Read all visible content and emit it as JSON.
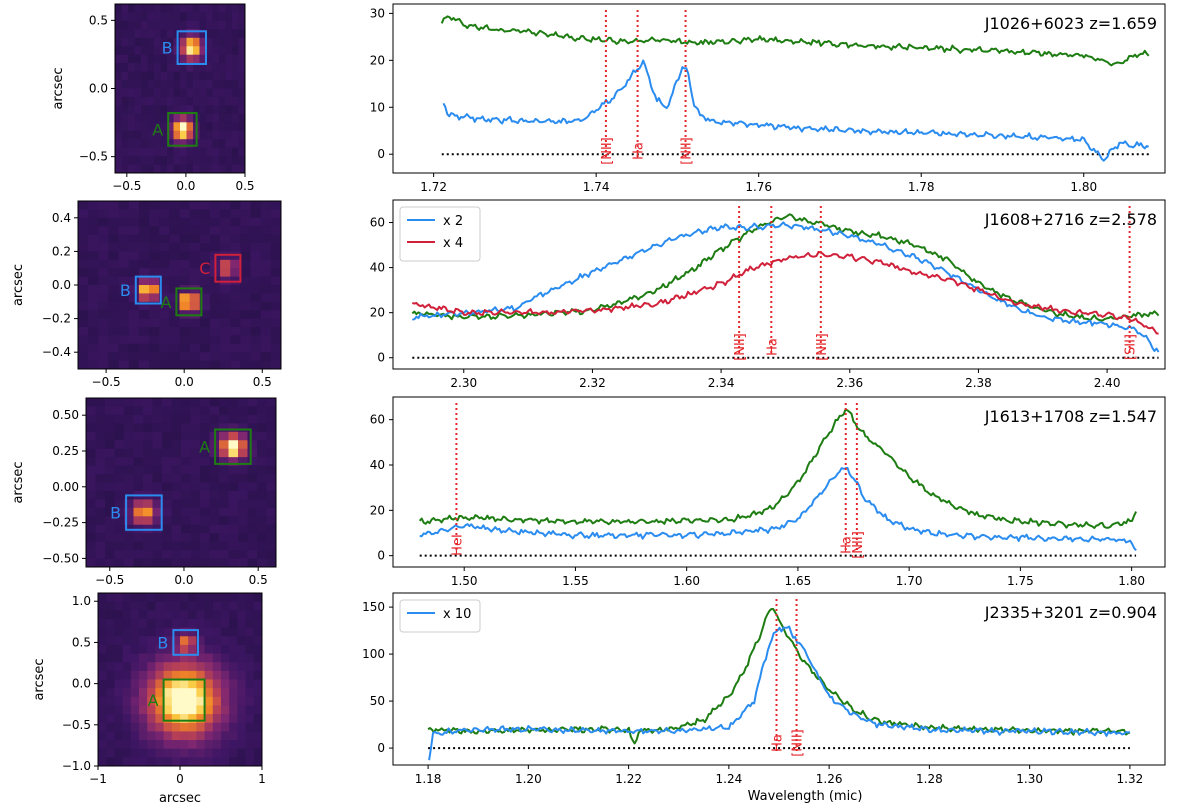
{
  "figure": {
    "x_label_bottom": "Wavelength (mic)"
  },
  "colors": {
    "green": "#1e7d12",
    "blue": "#2b8cf0",
    "red": "#d0203a",
    "marker": "#e5262b",
    "zero": "#000000"
  },
  "panels": [
    {
      "id": "j1026",
      "image": {
        "ylabel": "arcsec",
        "xlabel": "",
        "xlim": [
          -0.6,
          0.5
        ],
        "ylim": [
          -0.62,
          0.62
        ],
        "xticks": [
          -0.5,
          0.0,
          0.5
        ],
        "xtick_labels": [
          "−0.5",
          "0.0",
          "0.5"
        ],
        "yticks": [
          0.5,
          0.0,
          -0.5
        ],
        "ytick_labels": [
          "0.5",
          "0.0",
          "−0.5"
        ],
        "sources": [
          {
            "label": "B",
            "x": 0.05,
            "y": 0.3,
            "half": 0.12,
            "color": "#2b8cf0",
            "peak": 0.9
          },
          {
            "label": "A",
            "x": -0.03,
            "y": -0.3,
            "half": 0.12,
            "color": "#1e7d12",
            "peak": 1.0
          }
        ]
      },
      "spectrum": {
        "label": "J1026+6023",
        "z_label": "z=1.659",
        "xlim": [
          1.715,
          1.81
        ],
        "ylim": [
          -4,
          32
        ],
        "xticks": [
          1.72,
          1.74,
          1.76,
          1.78,
          1.8
        ],
        "xtick_labels": [
          "1.72",
          "1.74",
          "1.76",
          "1.78",
          "1.80"
        ],
        "yticks": [
          0,
          10,
          20,
          30
        ],
        "ytick_labels": [
          "0",
          "10",
          "20",
          "30"
        ],
        "legend": [],
        "lines": [
          {
            "name": "[NII]",
            "x": 1.7412
          },
          {
            "name": "Ha",
            "x": 1.7451
          },
          {
            "name": "[NII]",
            "x": 1.751
          }
        ],
        "series": [
          {
            "name": "green",
            "color": "#1e7d12",
            "x": [
              1.721,
              1.722,
              1.724,
              1.728,
              1.732,
              1.736,
              1.74,
              1.744,
              1.748,
              1.752,
              1.756,
              1.76,
              1.765,
              1.77,
              1.775,
              1.78,
              1.785,
              1.79,
              1.795,
              1.8,
              1.804,
              1.806,
              1.808
            ],
            "y": [
              28,
              29.5,
              27.5,
              26.5,
              26,
              25,
              24.5,
              24,
              24.3,
              23.8,
              24,
              24.5,
              24,
              23.5,
              23,
              22.7,
              22.3,
              22,
              21.5,
              21,
              19,
              21,
              21.5
            ]
          },
          {
            "name": "blue",
            "color": "#2b8cf0",
            "x": [
              1.7212,
              1.7218,
              1.723,
              1.726,
              1.73,
              1.734,
              1.738,
              1.7408,
              1.742,
              1.7435,
              1.7445,
              1.7458,
              1.7475,
              1.7488,
              1.7498,
              1.7506,
              1.7512,
              1.752,
              1.7528,
              1.7545,
              1.758,
              1.762,
              1.766,
              1.77,
              1.775,
              1.78,
              1.785,
              1.79,
              1.795,
              1.798,
              1.8,
              1.8018,
              1.8025,
              1.8032,
              1.8045,
              1.806,
              1.808
            ],
            "y": [
              11,
              8.5,
              8,
              7.5,
              7.2,
              7,
              7,
              10.5,
              12,
              14.5,
              17,
              19.5,
              11.5,
              10,
              15,
              18.5,
              18,
              11,
              8,
              7,
              6.5,
              6,
              5.5,
              5.2,
              4.8,
              4.6,
              4.2,
              3.9,
              3.6,
              3.4,
              3,
              0,
              -1.5,
              0.5,
              2.5,
              2,
              1.8
            ]
          }
        ]
      }
    },
    {
      "id": "j1608",
      "image": {
        "ylabel": "arcsec",
        "xlabel": "",
        "xlim": [
          -0.68,
          0.62
        ],
        "ylim": [
          -0.5,
          0.5
        ],
        "xticks": [
          -0.5,
          0.0,
          0.5
        ],
        "xtick_labels": [
          "−0.5",
          "0.0",
          "0.5"
        ],
        "yticks": [
          0.4,
          0.2,
          0.0,
          -0.2,
          -0.4
        ],
        "ytick_labels": [
          "0.4",
          "0.2",
          "0.0",
          "−0.2",
          "−0.4"
        ],
        "sources": [
          {
            "label": "B",
            "x": -0.23,
            "y": -0.03,
            "half": 0.08,
            "color": "#2b8cf0",
            "peak": 0.95
          },
          {
            "label": "A",
            "x": 0.03,
            "y": -0.1,
            "half": 0.08,
            "color": "#1e7d12",
            "peak": 1.0
          },
          {
            "label": "C",
            "x": 0.28,
            "y": 0.1,
            "half": 0.08,
            "color": "#d0203a",
            "peak": 0.6
          }
        ]
      },
      "spectrum": {
        "label": "J1608+2716",
        "z_label": "z=2.578",
        "xlim": [
          2.289,
          2.409
        ],
        "ylim": [
          -5,
          70
        ],
        "xticks": [
          2.3,
          2.32,
          2.34,
          2.36,
          2.38,
          2.4
        ],
        "xtick_labels": [
          "2.30",
          "2.32",
          "2.34",
          "2.36",
          "2.38",
          "2.40"
        ],
        "yticks": [
          0,
          20,
          40,
          60
        ],
        "ytick_labels": [
          "0",
          "20",
          "40",
          "60"
        ],
        "legend": [
          {
            "label": "x 2",
            "color": "#2b8cf0"
          },
          {
            "label": "x 4",
            "color": "#d0203a"
          }
        ],
        "lines": [
          {
            "name": "[NII]",
            "x": 2.3428
          },
          {
            "name": "Ha",
            "x": 2.3478
          },
          {
            "name": "[NII]",
            "x": 2.3555
          },
          {
            "name": "[SII]",
            "x": 2.4035
          }
        ],
        "series": [
          {
            "name": "green",
            "color": "#1e7d12",
            "x": [
              2.292,
              2.3,
              2.31,
              2.32,
              2.325,
              2.33,
              2.335,
              2.34,
              2.345,
              2.35,
              2.355,
              2.36,
              2.365,
              2.37,
              2.375,
              2.38,
              2.385,
              2.39,
              2.395,
              2.4,
              2.405,
              2.408
            ],
            "y": [
              20,
              18,
              19,
              21,
              25,
              30,
              38,
              48,
              57,
              63,
              60,
              56,
              54,
              50,
              44,
              33,
              26,
              21,
              18,
              17,
              19,
              20
            ]
          },
          {
            "name": "blue",
            "color": "#2b8cf0",
            "x": [
              2.292,
              2.296,
              2.302,
              2.308,
              2.312,
              2.316,
              2.32,
              2.325,
              2.33,
              2.335,
              2.34,
              2.345,
              2.35,
              2.355,
              2.36,
              2.365,
              2.37,
              2.375,
              2.38,
              2.385,
              2.39,
              2.395,
              2.4,
              2.404,
              2.406,
              2.408
            ],
            "y": [
              18,
              19,
              20,
              22,
              28,
              33,
              38,
              44,
              50,
              55,
              58,
              58,
              59,
              57,
              54,
              50,
              45,
              38,
              30,
              23,
              18,
              16,
              15,
              13,
              9,
              2
            ]
          },
          {
            "name": "red",
            "color": "#d0203a",
            "x": [
              2.292,
              2.3,
              2.31,
              2.32,
              2.33,
              2.335,
              2.34,
              2.345,
              2.35,
              2.355,
              2.36,
              2.365,
              2.37,
              2.375,
              2.38,
              2.385,
              2.39,
              2.395,
              2.4,
              2.404,
              2.406,
              2.408
            ],
            "y": [
              24,
              20,
              20,
              21,
              24,
              28,
              33,
              40,
              44,
              46,
              45,
              42,
              38,
              35,
              30,
              25,
              22,
              20,
              19,
              17,
              14,
              11
            ]
          }
        ]
      }
    },
    {
      "id": "j1613",
      "image": {
        "ylabel": "arcsec",
        "xlabel": "",
        "xlim": [
          -0.66,
          0.62
        ],
        "ylim": [
          -0.56,
          0.62
        ],
        "xticks": [
          -0.5,
          0.0,
          0.5
        ],
        "xtick_labels": [
          "−0.5",
          "0.0",
          "0.5"
        ],
        "yticks": [
          0.5,
          0.25,
          0.0,
          -0.25,
          -0.5
        ],
        "ytick_labels": [
          "0.50",
          "0.25",
          "0.00",
          "−0.25",
          "−0.50"
        ],
        "sources": [
          {
            "label": "A",
            "x": 0.33,
            "y": 0.28,
            "half": 0.12,
            "color": "#1e7d12",
            "peak": 1.0
          },
          {
            "label": "B",
            "x": -0.27,
            "y": -0.18,
            "half": 0.12,
            "color": "#2b8cf0",
            "peak": 0.7
          }
        ]
      },
      "spectrum": {
        "label": "J1613+1708",
        "z_label": "z=1.547",
        "xlim": [
          1.468,
          1.815
        ],
        "ylim": [
          -5,
          70
        ],
        "xticks": [
          1.5,
          1.55,
          1.6,
          1.65,
          1.7,
          1.75,
          1.8
        ],
        "xtick_labels": [
          "1.50",
          "1.55",
          "1.60",
          "1.65",
          "1.70",
          "1.75",
          "1.80"
        ],
        "yticks": [
          0,
          20,
          40,
          60
        ],
        "ytick_labels": [
          "0",
          "20",
          "40",
          "60"
        ],
        "legend": [],
        "lines": [
          {
            "name": "HeI",
            "x": 1.4965
          },
          {
            "name": "Ha",
            "x": 1.6715
          },
          {
            "name": "[NII]",
            "x": 1.6765
          }
        ],
        "series": [
          {
            "name": "green",
            "color": "#1e7d12",
            "x": [
              1.48,
              1.5,
              1.52,
              1.55,
              1.58,
              1.6,
              1.62,
              1.63,
              1.64,
              1.65,
              1.66,
              1.668,
              1.672,
              1.676,
              1.68,
              1.69,
              1.7,
              1.71,
              1.72,
              1.73,
              1.75,
              1.77,
              1.79,
              1.8,
              1.802
            ],
            "y": [
              15,
              17,
              16,
              15,
              15,
              15.5,
              16,
              18,
              22,
              32,
              48,
              60,
              65,
              58,
              53,
              45,
              35,
              27,
              22,
              18,
              15,
              14,
              13,
              15,
              20
            ]
          },
          {
            "name": "blue",
            "color": "#2b8cf0",
            "x": [
              1.48,
              1.5,
              1.52,
              1.55,
              1.58,
              1.6,
              1.62,
              1.64,
              1.65,
              1.66,
              1.668,
              1.672,
              1.676,
              1.68,
              1.69,
              1.7,
              1.71,
              1.72,
              1.73,
              1.75,
              1.77,
              1.79,
              1.8,
              1.802
            ],
            "y": [
              9,
              13,
              11,
              9,
              9,
              9,
              10,
              12,
              16,
              27,
              37,
              39,
              33,
              25,
              16,
              12,
              10,
              9,
              8.5,
              8,
              7.5,
              7,
              6.5,
              1
            ]
          }
        ]
      }
    },
    {
      "id": "j2335",
      "image": {
        "ylabel": "arcsec",
        "xlabel": "arcsec",
        "xlim": [
          -1.0,
          1.0
        ],
        "ylim": [
          -1.0,
          1.1
        ],
        "xticks": [
          -1,
          0,
          1
        ],
        "xtick_labels": [
          "−1",
          "0",
          "1"
        ],
        "yticks": [
          1.0,
          0.5,
          0.0,
          -0.5,
          -1.0
        ],
        "ytick_labels": [
          "1.0",
          "0.5",
          "0.0",
          "−0.5",
          "−1.0"
        ],
        "sources": [
          {
            "label": "B",
            "x": 0.07,
            "y": 0.5,
            "half": 0.15,
            "color": "#2b8cf0",
            "peak": 0.55
          },
          {
            "label": "A",
            "x": 0.05,
            "y": -0.2,
            "half": 0.25,
            "color": "#1e7d12",
            "peak": 1.0
          }
        ]
      },
      "spectrum": {
        "label": "J2335+3201",
        "z_label": "z=0.904",
        "xlim": [
          1.173,
          1.327
        ],
        "ylim": [
          -18,
          165
        ],
        "xticks": [
          1.18,
          1.2,
          1.22,
          1.24,
          1.26,
          1.28,
          1.3,
          1.32
        ],
        "xtick_labels": [
          "1.18",
          "1.20",
          "1.22",
          "1.24",
          "1.26",
          "1.28",
          "1.30",
          "1.32"
        ],
        "yticks": [
          0,
          50,
          100,
          150
        ],
        "ytick_labels": [
          "0",
          "50",
          "100",
          "150"
        ],
        "legend": [
          {
            "label": "x 10",
            "color": "#2b8cf0"
          }
        ],
        "lines": [
          {
            "name": "Ha",
            "x": 1.2495
          },
          {
            "name": "[NII]",
            "x": 1.2535
          }
        ],
        "series": [
          {
            "name": "green",
            "color": "#1e7d12",
            "x": [
              1.18,
              1.19,
              1.2,
              1.21,
              1.22,
              1.221,
              1.222,
              1.23,
              1.235,
              1.24,
              1.243,
              1.246,
              1.248,
              1.249,
              1.25,
              1.252,
              1.254,
              1.256,
              1.26,
              1.265,
              1.27,
              1.28,
              1.29,
              1.3,
              1.31,
              1.32
            ],
            "y": [
              20,
              18,
              19,
              20,
              20,
              2,
              18,
              22,
              30,
              55,
              82,
              118,
              145,
              150,
              135,
              118,
              100,
              85,
              62,
              40,
              28,
              22,
              20,
              19,
              18,
              18
            ]
          },
          {
            "name": "blue",
            "color": "#2b8cf0",
            "x": [
              1.1802,
              1.181,
              1.185,
              1.19,
              1.2,
              1.21,
              1.22,
              1.23,
              1.24,
              1.245,
              1.248,
              1.25,
              1.252,
              1.254,
              1.256,
              1.258,
              1.26,
              1.265,
              1.27,
              1.28,
              1.29,
              1.3,
              1.31,
              1.32
            ],
            "y": [
              -10,
              15,
              18,
              20,
              20,
              19,
              18,
              18,
              22,
              50,
              110,
              128,
              126,
              112,
              95,
              75,
              55,
              35,
              25,
              20,
              18,
              18,
              17,
              16
            ]
          }
        ]
      }
    }
  ]
}
